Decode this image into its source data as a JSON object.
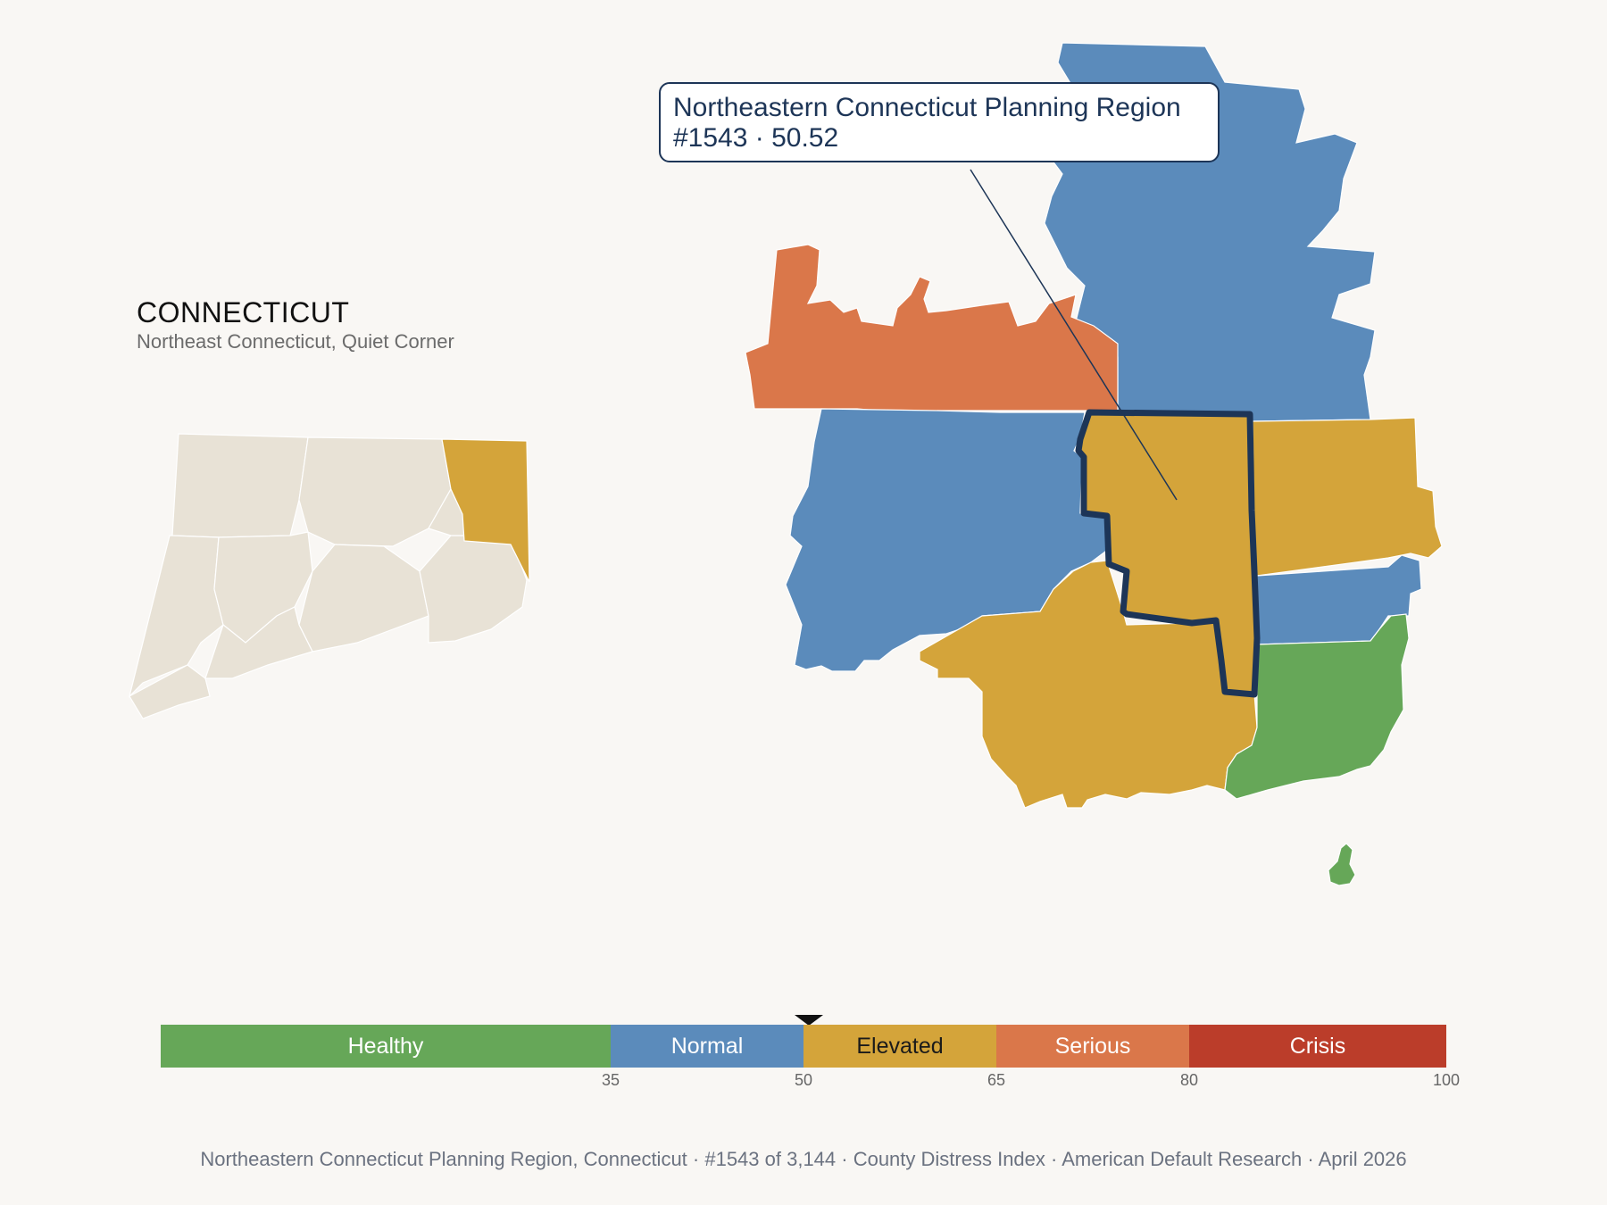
{
  "state": {
    "title": "CONNECTICUT",
    "subtitle": "Northeast Connecticut, Quiet Corner"
  },
  "callout": {
    "name": "Northeastern Connecticut Planning Region",
    "detail": "#1543 · 50.52"
  },
  "legend": {
    "categories": [
      {
        "label": "Healthy",
        "color": "#66a758",
        "text_color": "#ffffff"
      },
      {
        "label": "Normal",
        "color": "#5b8bbb",
        "text_color": "#ffffff"
      },
      {
        "label": "Elevated",
        "color": "#d4a43a",
        "text_color": "#1a1a1a"
      },
      {
        "label": "Serious",
        "color": "#da774a",
        "text_color": "#ffffff"
      },
      {
        "label": "Crisis",
        "color": "#bb3d2a",
        "text_color": "#ffffff"
      }
    ],
    "ticks": [
      "35",
      "50",
      "65",
      "80",
      "100"
    ],
    "marker_value": 50.52
  },
  "map_colors": {
    "inset_fill": "#e8e2d6",
    "highlight_outline": "#1d3557",
    "highlight_fill": "#d4a43a"
  },
  "footer": "Northeastern Connecticut Planning Region, Connecticut  ·  #1543 of 3,144  ·  County Distress Index  ·  American Default Research  ·  April 2026"
}
